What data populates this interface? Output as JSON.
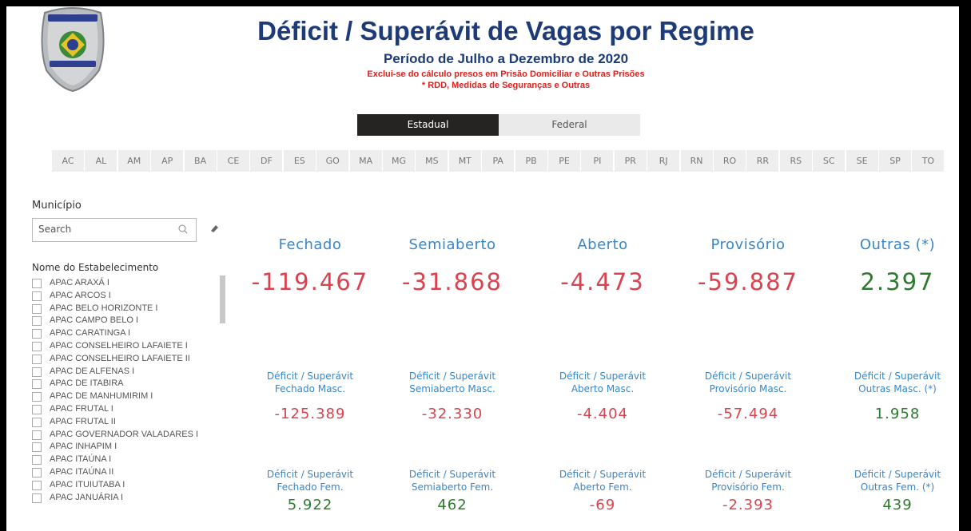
{
  "header": {
    "title": "Déficit / Superávit de Vagas por Regime",
    "subtitle": "Período de Julho a Dezembro de 2020",
    "notes": [
      "Exclui-se do cálculo presos em Prisão Domiciliar e Outras Prisões",
      "* RDD, Medidas de Seguranças e Outras"
    ]
  },
  "tabs": [
    "Estadual",
    "Federal"
  ],
  "active_tab": "Estadual",
  "states": [
    "AC",
    "AL",
    "AM",
    "AP",
    "BA",
    "CE",
    "DF",
    "ES",
    "GO",
    "MA",
    "MG",
    "MS",
    "MT",
    "PA",
    "PB",
    "PE",
    "PI",
    "PR",
    "RJ",
    "RN",
    "RO",
    "RR",
    "RS",
    "SC",
    "SE",
    "SP",
    "TO"
  ],
  "filters": {
    "municipio_label": "Município",
    "search_placeholder": "Search",
    "list_label": "Nome do Estabelecimento",
    "establishments": [
      "APAC ARAXÁ I",
      "APAC ARCOS I",
      "APAC BELO HORIZONTE I",
      "APAC CAMPO BELO I",
      "APAC CARATINGA I",
      "APAC CONSELHEIRO LAFAIETE I",
      "APAC CONSELHEIRO LAFAIETE II",
      "APAC DE ALFENAS I",
      "APAC DE ITABIRA",
      "APAC DE MANHUMIRIM I",
      "APAC FRUTAL I",
      "APAC FRUTAL II",
      "APAC GOVERNADOR VALADARES I",
      "APAC INHAPIM I",
      "APAC ITAÚNA I",
      "APAC ITAÚNA II",
      "APAC ITUIUTABA I",
      "APAC JANUÁRIA I"
    ]
  },
  "cards": {
    "main": [
      {
        "label": "Fechado",
        "value": "-119.467"
      },
      {
        "label": "Semiaberto",
        "value": "-31.868"
      },
      {
        "label": "Aberto",
        "value": "-4.473"
      },
      {
        "label": "Provisório",
        "value": "-59.887"
      },
      {
        "label": "Outras (*)",
        "value": "2.397"
      }
    ],
    "masc": [
      {
        "label": [
          "Déficit / Superávit",
          "Fechado Masc."
        ],
        "value": "-125.389"
      },
      {
        "label": [
          "Déficit / Superávit",
          "Semiaberto Masc."
        ],
        "value": "-32.330"
      },
      {
        "label": [
          "Déficit / Superávit",
          "Aberto Masc."
        ],
        "value": "-4.404"
      },
      {
        "label": [
          "Déficit / Superávit",
          "Provisório Masc."
        ],
        "value": "-57.494"
      },
      {
        "label": [
          "Déficit / Superávit",
          "Outras Masc. (*)"
        ],
        "value": "1.958"
      }
    ],
    "fem": [
      {
        "label": [
          "Déficit / Superávit",
          "Fechado Fem."
        ],
        "value": "5.922"
      },
      {
        "label": [
          "Déficit / Superávit",
          "Semiaberto Fem."
        ],
        "value": "462"
      },
      {
        "label": [
          "Déficit / Superávit",
          "Aberto Fem."
        ],
        "value": "-69"
      },
      {
        "label": [
          "Déficit / Superávit",
          "Provisório Fem."
        ],
        "value": "-2.393"
      },
      {
        "label": [
          "Déficit / Superávit",
          "Outras Fem. (*)"
        ],
        "value": "439"
      }
    ]
  }
}
